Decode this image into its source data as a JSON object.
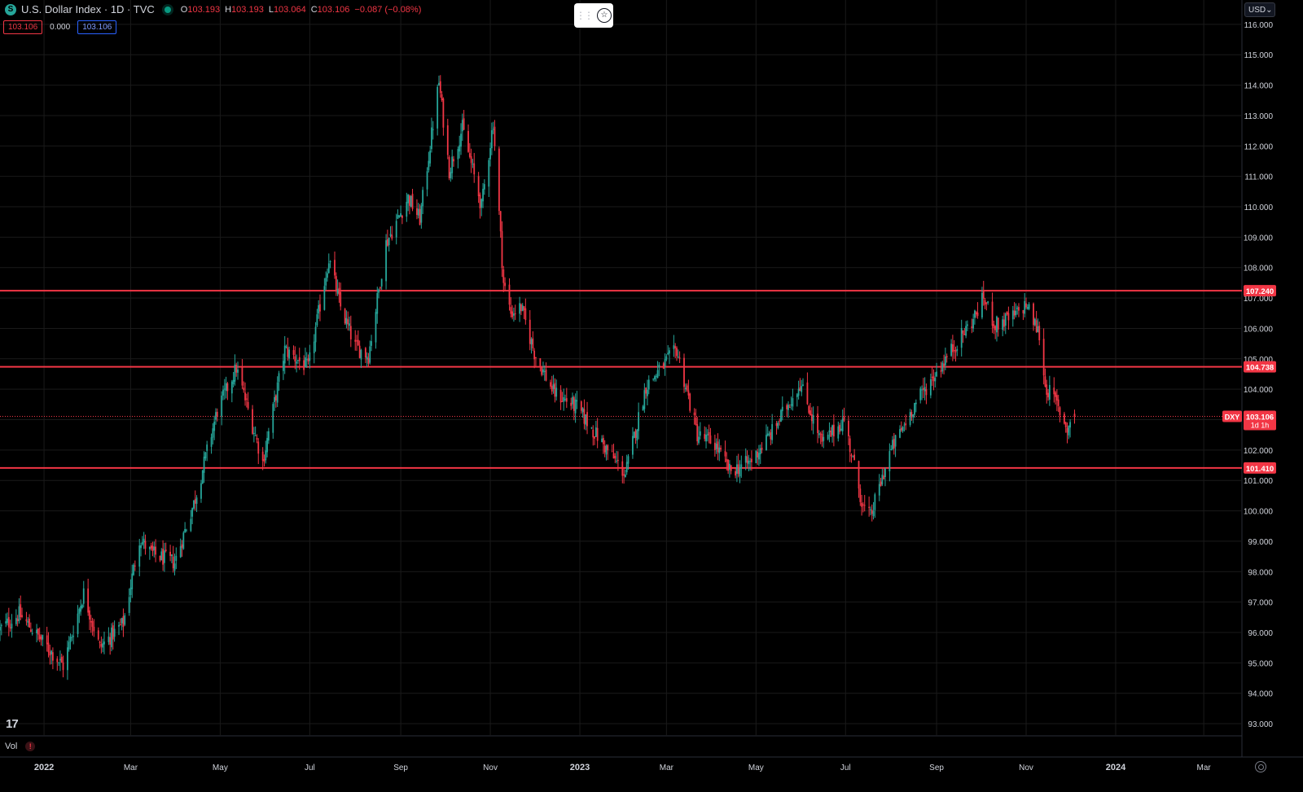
{
  "header": {
    "symbol_icon": "S",
    "title": "U.S. Dollar Index · 1D · TVC",
    "ohlc": {
      "o_label": "O",
      "o": "103.193",
      "h_label": "H",
      "h": "103.193",
      "l_label": "L",
      "l": "103.064",
      "c_label": "C",
      "c": "103.106",
      "change": "−0.087 (−0.08%)"
    },
    "sub_values": {
      "sell": "103.106",
      "spread": "0.000",
      "buy": "103.106"
    }
  },
  "currency_selector": {
    "label": "USD"
  },
  "floating_toolbar": {
    "grip_icon": "drag-handle-icon",
    "star_icon": "favorite-star-icon"
  },
  "branding": {
    "logo_text": "17"
  },
  "volume_pane": {
    "label": "Vol",
    "warning_icon": "!"
  },
  "colors": {
    "up": "#26a69a",
    "down": "#f23645",
    "hline": "#f23645",
    "background": "#000000",
    "grid": "#1a1a1a",
    "axis_text": "#d1d4dc"
  },
  "chart_data": {
    "type": "candlestick",
    "title": "U.S. Dollar Index · 1D · TVC",
    "ylim": [
      92.6,
      116.8
    ],
    "y_ticks": [
      "116.000",
      "115.000",
      "114.000",
      "113.000",
      "112.000",
      "111.000",
      "110.000",
      "109.000",
      "108.000",
      "107.000",
      "106.000",
      "105.000",
      "104.000",
      "103.000",
      "102.000",
      "101.000",
      "100.000",
      "99.000",
      "98.000",
      "97.000",
      "96.000",
      "95.000",
      "94.000",
      "93.000"
    ],
    "x_ticks": [
      {
        "label": "2022",
        "date": "2022-01-01"
      },
      {
        "label": "Mar",
        "date": "2022-03-01"
      },
      {
        "label": "May",
        "date": "2022-05-01"
      },
      {
        "label": "Jul",
        "date": "2022-07-01"
      },
      {
        "label": "Sep",
        "date": "2022-09-01"
      },
      {
        "label": "Nov",
        "date": "2022-11-01"
      },
      {
        "label": "2023",
        "date": "2023-01-01"
      },
      {
        "label": "Mar",
        "date": "2023-03-01"
      },
      {
        "label": "May",
        "date": "2023-05-01"
      },
      {
        "label": "Jul",
        "date": "2023-07-01"
      },
      {
        "label": "Sep",
        "date": "2023-09-01"
      },
      {
        "label": "Nov",
        "date": "2023-11-01"
      },
      {
        "label": "2024",
        "date": "2024-01-01"
      },
      {
        "label": "Mar",
        "date": "2024-03-01"
      }
    ],
    "x_range": [
      "2021-12-02",
      "2024-03-27"
    ],
    "close_path": [
      {
        "date": "2021-12-02",
        "close": 96.1
      },
      {
        "date": "2021-12-15",
        "close": 96.6
      },
      {
        "date": "2021-12-31",
        "close": 95.7
      },
      {
        "date": "2022-01-14",
        "close": 94.9
      },
      {
        "date": "2022-01-28",
        "close": 97.3
      },
      {
        "date": "2022-02-08",
        "close": 95.5
      },
      {
        "date": "2022-02-24",
        "close": 96.3
      },
      {
        "date": "2022-03-07",
        "close": 99.1
      },
      {
        "date": "2022-03-15",
        "close": 98.6
      },
      {
        "date": "2022-03-31",
        "close": 98.3
      },
      {
        "date": "2022-04-14",
        "close": 100.4
      },
      {
        "date": "2022-04-29",
        "close": 103.3
      },
      {
        "date": "2022-05-12",
        "close": 104.7
      },
      {
        "date": "2022-05-30",
        "close": 101.6
      },
      {
        "date": "2022-06-14",
        "close": 105.3
      },
      {
        "date": "2022-06-30",
        "close": 104.7
      },
      {
        "date": "2022-07-14",
        "close": 108.3
      },
      {
        "date": "2022-07-22",
        "close": 106.7
      },
      {
        "date": "2022-08-01",
        "close": 105.4
      },
      {
        "date": "2022-08-10",
        "close": 105.1
      },
      {
        "date": "2022-08-22",
        "close": 108.8
      },
      {
        "date": "2022-09-06",
        "close": 110.3
      },
      {
        "date": "2022-09-14",
        "close": 109.6
      },
      {
        "date": "2022-09-27",
        "close": 114.1
      },
      {
        "date": "2022-10-04",
        "close": 111.2
      },
      {
        "date": "2022-10-13",
        "close": 112.6
      },
      {
        "date": "2022-10-26",
        "close": 110.0
      },
      {
        "date": "2022-11-03",
        "close": 112.8
      },
      {
        "date": "2022-11-10",
        "close": 107.5
      },
      {
        "date": "2022-11-15",
        "close": 106.5
      },
      {
        "date": "2022-11-22",
        "close": 106.7
      },
      {
        "date": "2022-12-01",
        "close": 105.2
      },
      {
        "date": "2022-12-14",
        "close": 103.9
      },
      {
        "date": "2022-12-30",
        "close": 103.4
      },
      {
        "date": "2023-01-18",
        "close": 102.1
      },
      {
        "date": "2023-02-01",
        "close": 101.2
      },
      {
        "date": "2023-02-15",
        "close": 104.1
      },
      {
        "date": "2023-03-08",
        "close": 105.3
      },
      {
        "date": "2023-03-22",
        "close": 102.5
      },
      {
        "date": "2023-04-03",
        "close": 102.2
      },
      {
        "date": "2023-04-13",
        "close": 101.3
      },
      {
        "date": "2023-04-27",
        "close": 101.6
      },
      {
        "date": "2023-05-12",
        "close": 102.6
      },
      {
        "date": "2023-05-31",
        "close": 104.2
      },
      {
        "date": "2023-06-15",
        "close": 102.2
      },
      {
        "date": "2023-06-30",
        "close": 103.0
      },
      {
        "date": "2023-07-13",
        "close": 100.1
      },
      {
        "date": "2023-07-18",
        "close": 99.8
      },
      {
        "date": "2023-07-31",
        "close": 101.9
      },
      {
        "date": "2023-08-17",
        "close": 103.5
      },
      {
        "date": "2023-09-07",
        "close": 105.0
      },
      {
        "date": "2023-09-26",
        "close": 106.3
      },
      {
        "date": "2023-10-03",
        "close": 107.0
      },
      {
        "date": "2023-10-11",
        "close": 106.1
      },
      {
        "date": "2023-10-24",
        "close": 106.4
      },
      {
        "date": "2023-11-01",
        "close": 106.8
      },
      {
        "date": "2023-11-10",
        "close": 105.8
      },
      {
        "date": "2023-11-14",
        "close": 104.1
      },
      {
        "date": "2023-11-21",
        "close": 103.6
      },
      {
        "date": "2023-11-29",
        "close": 102.7
      },
      {
        "date": "2023-12-04",
        "close": 103.106
      }
    ],
    "horizontal_lines": [
      {
        "value": 107.24,
        "label": "107.240"
      },
      {
        "value": 104.738,
        "label": "104.738"
      },
      {
        "value": 101.41,
        "label": "101.410"
      }
    ],
    "last_price": {
      "value": 103.106,
      "symbol_tag": "DXY",
      "label": "103.106",
      "countdown": "1d 1h"
    }
  }
}
